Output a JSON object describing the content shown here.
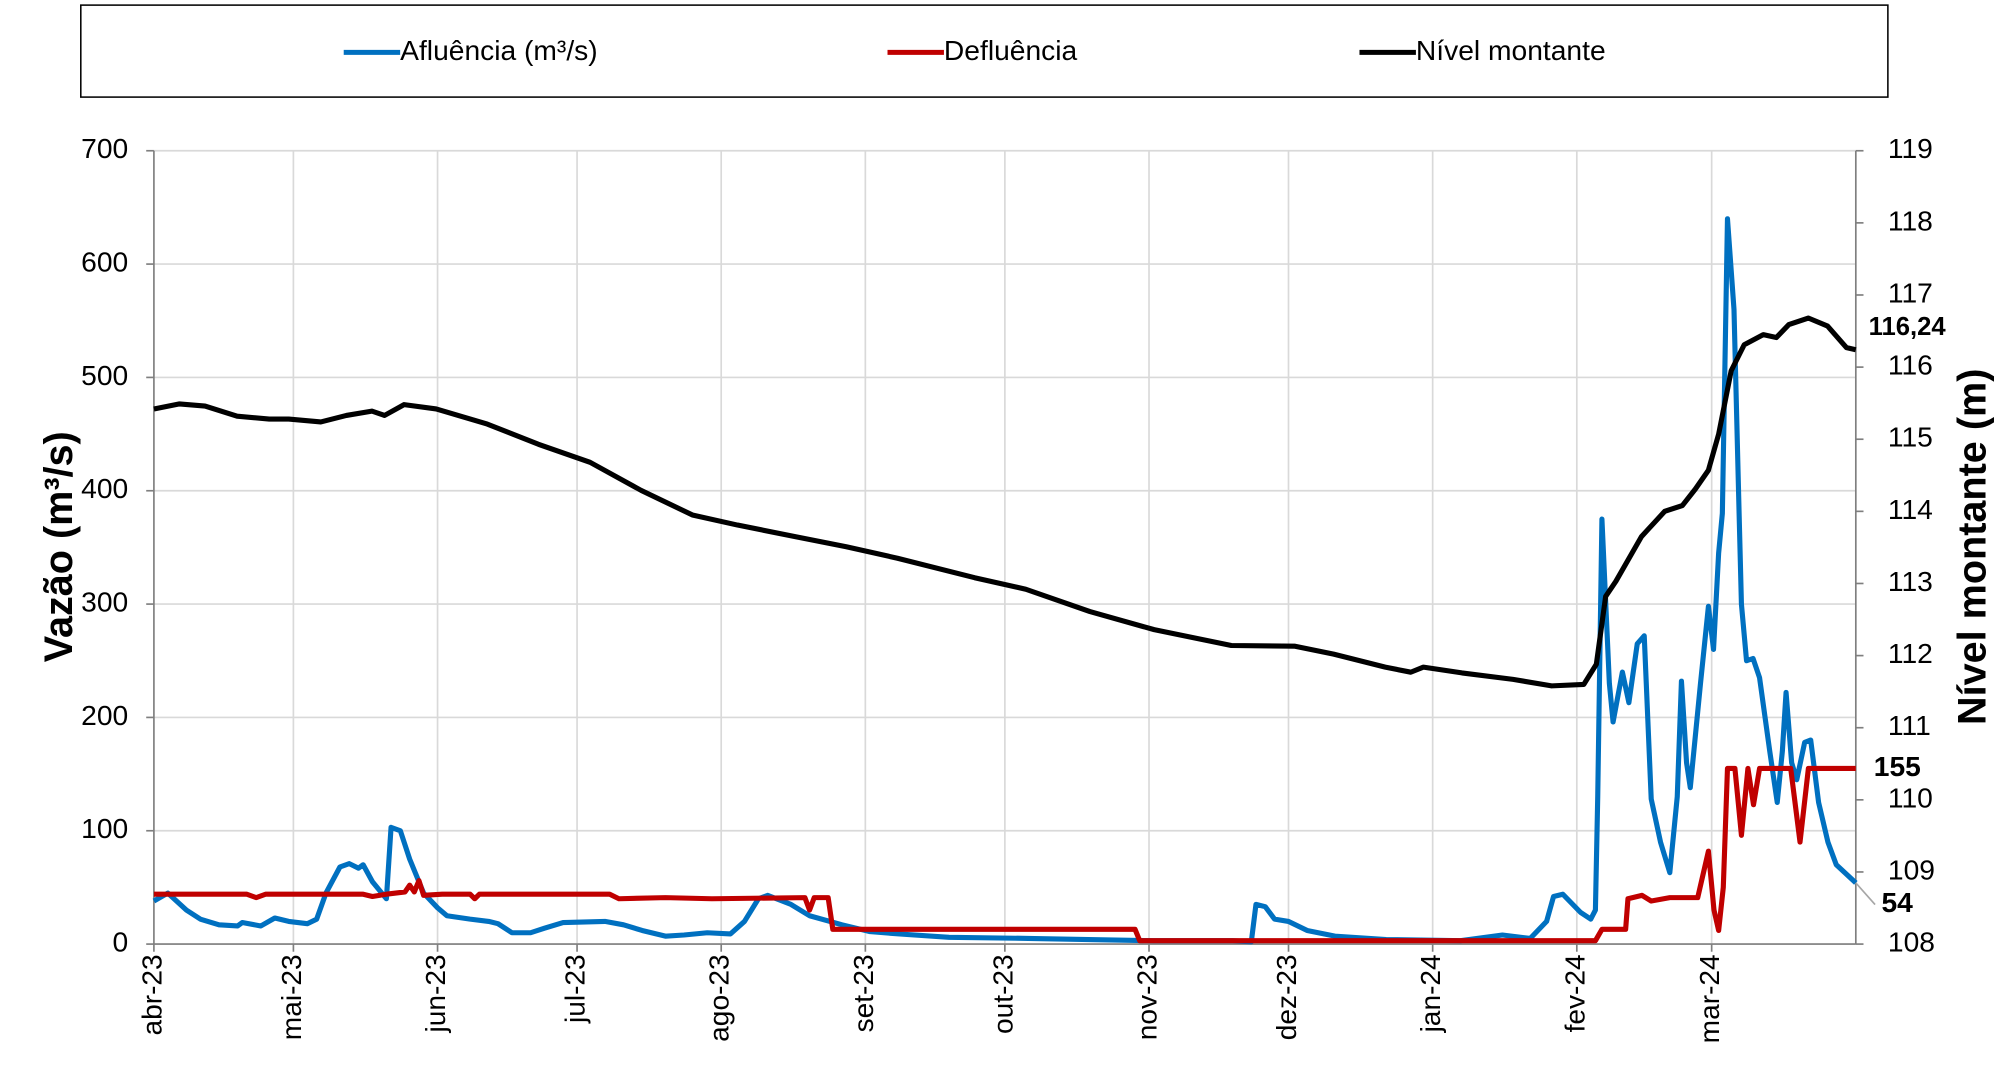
{
  "chart_data": {
    "type": "line",
    "ylabel": "Vazão (m³/s)",
    "y2label": "Nível montante (m)",
    "xlim": [
      0,
      366
    ],
    "xticks": [
      {
        "value": 0,
        "label": "abr-23"
      },
      {
        "value": 30,
        "label": "mai-23"
      },
      {
        "value": 61,
        "label": "jun-23"
      },
      {
        "value": 91,
        "label": "jul-23"
      },
      {
        "value": 122,
        "label": "ago-23"
      },
      {
        "value": 153,
        "label": "set-23"
      },
      {
        "value": 183,
        "label": "out-23"
      },
      {
        "value": 214,
        "label": "nov-23"
      },
      {
        "value": 244,
        "label": "dez-23"
      },
      {
        "value": 275,
        "label": "jan-24"
      },
      {
        "value": 306,
        "label": "fev-24"
      },
      {
        "value": 335,
        "label": "mar-24"
      }
    ],
    "ylim": [
      0,
      700
    ],
    "yticks": [
      0,
      100,
      200,
      300,
      400,
      500,
      600,
      700
    ],
    "y2lim": [
      108,
      119
    ],
    "y2ticks": [
      108,
      109,
      110,
      111,
      112,
      113,
      114,
      115,
      116,
      117,
      118,
      119
    ],
    "grid": true,
    "legend": "top",
    "series": [
      {
        "name": "Afluência (m³/s)",
        "color": "#0070c0",
        "x": [
          0,
          3,
          7,
          10,
          14,
          18,
          19,
          23,
          26,
          29,
          33,
          35,
          37,
          40,
          42,
          44,
          45,
          47,
          50,
          51,
          53,
          55,
          58,
          61,
          63,
          68,
          72,
          74,
          77,
          81,
          84,
          88,
          97,
          101,
          105,
          110,
          114,
          119,
          124,
          127,
          130,
          132,
          137,
          141,
          148,
          154,
          160,
          171,
          188,
          201,
          215,
          232,
          236,
          237,
          239,
          241,
          244,
          248,
          254,
          265,
          281,
          290,
          296,
          299.5,
          301,
          303,
          306.8,
          309,
          310,
          310.5,
          311.4,
          313,
          313.8,
          315.8,
          317.2,
          319,
          320.5,
          322,
          324,
          326,
          327.6,
          328.5,
          329.6,
          330.4,
          332.6,
          334.3,
          335.4,
          336.5,
          337.3,
          338.4,
          339.8,
          340.9,
          341.4,
          342.5,
          343.9,
          345.3,
          347.5,
          349.1,
          350.2,
          351,
          352.2,
          353.3,
          355,
          356.3,
          358,
          360,
          361.8,
          366
        ],
        "values": [
          38,
          45,
          30,
          22,
          17,
          16,
          19,
          16,
          23,
          20,
          18,
          22,
          45,
          68,
          71,
          67,
          70,
          55,
          40,
          103,
          100,
          75,
          45,
          32,
          25,
          22,
          20,
          18,
          10,
          10,
          14,
          19,
          20,
          17,
          12,
          7,
          8,
          10,
          9,
          20,
          40,
          43,
          35,
          25,
          17,
          11,
          9,
          6,
          5,
          4,
          3,
          3,
          2,
          35,
          33,
          22,
          20,
          12,
          7,
          4,
          3,
          8,
          5,
          20,
          42,
          44,
          28,
          22,
          30,
          130,
          375,
          230,
          196,
          240,
          213,
          265,
          272,
          128,
          90,
          63,
          130,
          232,
          160,
          138,
          230,
          298,
          260,
          345,
          380,
          640,
          560,
          380,
          300,
          250,
          252,
          235,
          170,
          125,
          170,
          222,
          160,
          145,
          178,
          180,
          125,
          90,
          70,
          54
        ]
      },
      {
        "name": "Defluência",
        "color": "#c00000",
        "x": [
          0,
          20,
          22,
          24,
          45,
          47,
          50,
          54,
          55,
          56,
          57,
          58,
          62,
          68,
          69,
          70,
          98,
          100,
          110,
          120,
          140,
          141,
          142,
          145,
          146,
          200,
          211,
          212,
          310,
          311.4,
          316.5,
          317,
          320,
          322,
          326,
          332,
          334.3,
          335.5,
          336.5,
          337.5,
          338.4,
          340,
          341.4,
          342.8,
          344,
          345.3,
          352,
          354,
          355.8,
          366
        ],
        "values": [
          44,
          44,
          41,
          44,
          44,
          42,
          44,
          46,
          52,
          46,
          56,
          43,
          44,
          44,
          40,
          44,
          44,
          40,
          41,
          40,
          41,
          30,
          41,
          41,
          13,
          13,
          13,
          3,
          3,
          13,
          13,
          40,
          43,
          38,
          41,
          41,
          82,
          30,
          12,
          50,
          155,
          155,
          96,
          155,
          123,
          155,
          155,
          90,
          155,
          155
        ]
      },
      {
        "name": "Nível montante",
        "color": "#000000",
        "axis": "y2",
        "x": [
          0,
          5.5,
          11,
          17.9,
          24.8,
          29,
          35.9,
          41.4,
          46.9,
          49.6,
          53.8,
          60.7,
          71.7,
          82.7,
          93.8,
          104.8,
          115.8,
          125.5,
          137.9,
          148.9,
          159.9,
          176.5,
          187.5,
          201.3,
          215.1,
          231.7,
          245.4,
          253.7,
          264.8,
          270.3,
          273,
          281.3,
          292.3,
          300.6,
          307.5,
          310.2,
          312.2,
          314.4,
          319.9,
          324.9,
          328.7,
          331.5,
          334.3,
          336.5,
          339.2,
          342,
          346.1,
          348.9,
          351.6,
          355.8,
          359.9,
          364,
          366
        ],
        "values": [
          115.42,
          115.49,
          115.46,
          115.32,
          115.28,
          115.28,
          115.24,
          115.33,
          115.39,
          115.33,
          115.48,
          115.42,
          115.21,
          114.93,
          114.68,
          114.29,
          113.95,
          113.81,
          113.65,
          113.51,
          113.35,
          113.08,
          112.92,
          112.61,
          112.36,
          112.14,
          112.13,
          112.02,
          111.84,
          111.77,
          111.84,
          111.76,
          111.67,
          111.58,
          111.6,
          111.88,
          112.82,
          113.03,
          113.65,
          114.0,
          114.08,
          114.31,
          114.57,
          115.07,
          115.95,
          116.31,
          116.45,
          116.41,
          116.59,
          116.68,
          116.57,
          116.27,
          116.24
        ],
        "value_labels": [
          null,
          null,
          null,
          null,
          null,
          null,
          null,
          null,
          null,
          null,
          null,
          null,
          null,
          null,
          null,
          null,
          null,
          null,
          null,
          null,
          null,
          null,
          null,
          null,
          null,
          null,
          null,
          null,
          null,
          null,
          null,
          null,
          null,
          null,
          null,
          null,
          null,
          null,
          null,
          null,
          null,
          null,
          null,
          null,
          null,
          null,
          null,
          null,
          null,
          null,
          null,
          null,
          "116,24"
        ]
      }
    ]
  }
}
